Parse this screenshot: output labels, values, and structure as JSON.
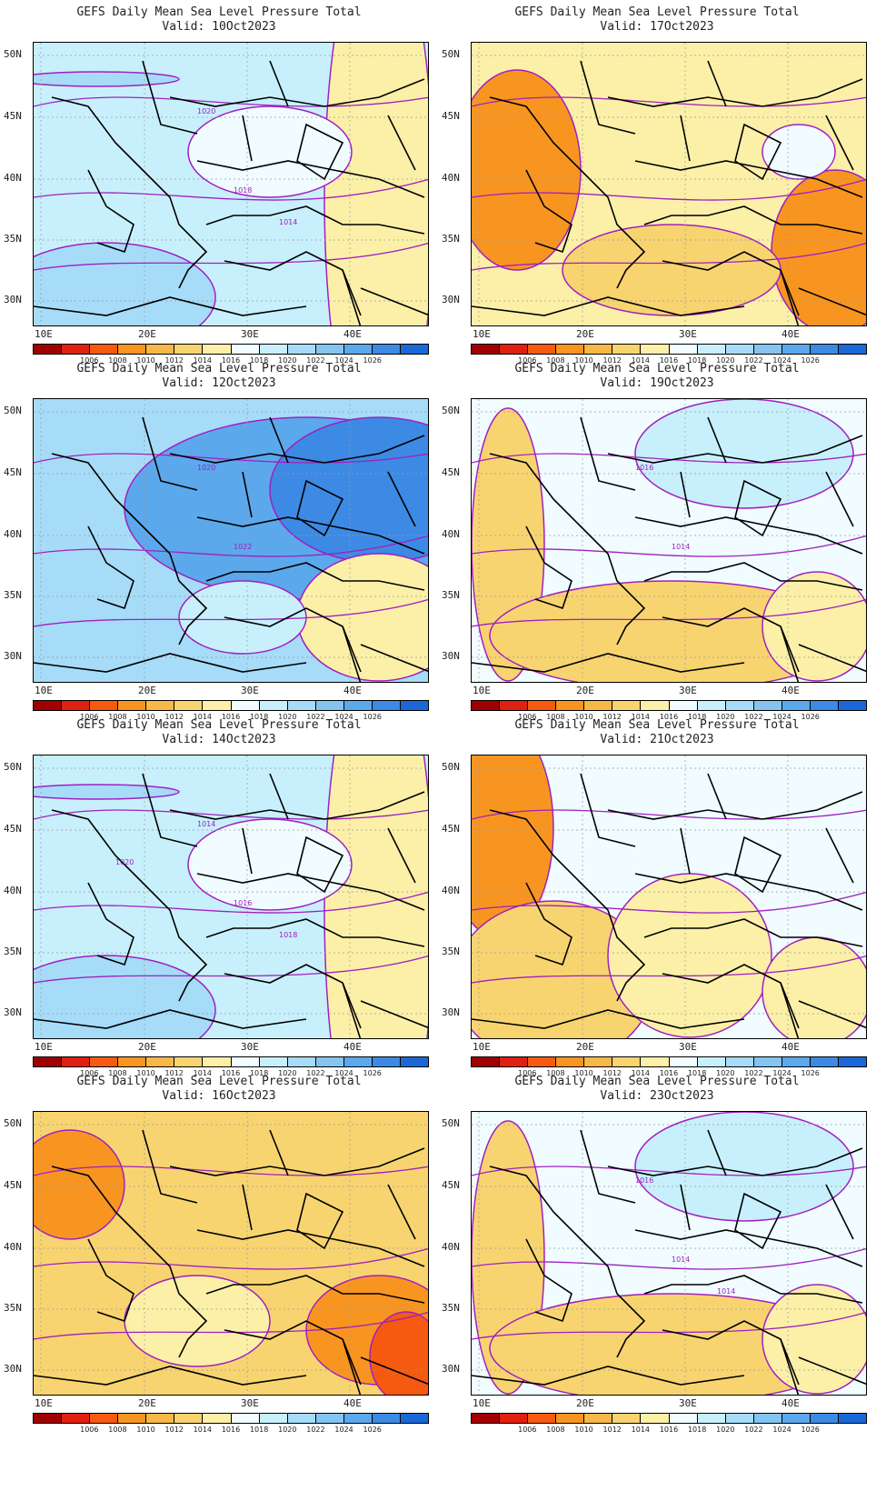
{
  "title": "GEFS Daily Mean Sea Level Pressure Total",
  "lat_labels": [
    "50N",
    "45N",
    "40N",
    "35N",
    "30N"
  ],
  "lon_labels": [
    "10E",
    "20E",
    "30E",
    "40E"
  ],
  "colorbar": {
    "colors": [
      "#a00000",
      "#e02010",
      "#f55a10",
      "#f89520",
      "#f8b848",
      "#f8d470",
      "#fcf0a8",
      "#f0fcff",
      "#c8f0fc",
      "#a6dcf8",
      "#84c4f0",
      "#5ca8ec",
      "#3c8ae4",
      "#1a68d8"
    ],
    "labels": [
      "1006",
      "1008",
      "1010",
      "1012",
      "1014",
      "1016",
      "1018",
      "1020",
      "1022",
      "1024",
      "1026"
    ]
  },
  "panels": [
    {
      "valid": "Valid: 10Oct2023",
      "theme": "high",
      "contour_labels": [
        "1020",
        "1018",
        "1014"
      ]
    },
    {
      "valid": "Valid: 17Oct2023",
      "theme": "low",
      "contour_labels": []
    },
    {
      "valid": "Valid: 12Oct2023",
      "theme": "veryhigh",
      "contour_labels": [
        "1020",
        "1022"
      ]
    },
    {
      "valid": "Valid: 19Oct2023",
      "theme": "mixed",
      "contour_labels": [
        "1016",
        "1014"
      ]
    },
    {
      "valid": "Valid: 14Oct2023",
      "theme": "high",
      "contour_labels": [
        "1014",
        "1016",
        "1018",
        "1020"
      ]
    },
    {
      "valid": "Valid: 21Oct2023",
      "theme": "mixedlow",
      "contour_labels": []
    },
    {
      "valid": "Valid: 16Oct2023",
      "theme": "lowest",
      "contour_labels": []
    },
    {
      "valid": "Valid: 23Oct2023",
      "theme": "mixed",
      "contour_labels": [
        "1016",
        "1014",
        "1014"
      ]
    }
  ]
}
